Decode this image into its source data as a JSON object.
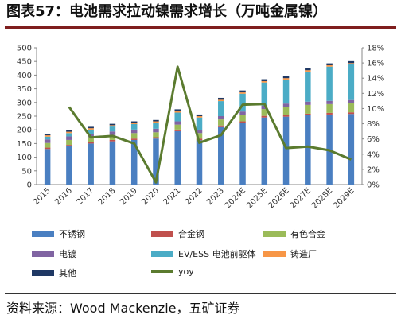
{
  "title": "图表57：电池需求拉动镍需求增长（万吨金属镍）",
  "source": "资料来源：Wood Mackenzie，五矿证券",
  "chart_data": {
    "type": "bar",
    "stacked": true,
    "categories": [
      "2015",
      "2016",
      "2017",
      "2018",
      "2019",
      "2020",
      "2021",
      "2022",
      "2023",
      "2024E",
      "2025E",
      "2026E",
      "2027E",
      "2028E",
      "2029E"
    ],
    "left_axis": {
      "min": 0,
      "max": 500,
      "step": 50,
      "ticks": [
        "0",
        "50",
        "100",
        "150",
        "200",
        "250",
        "300",
        "350",
        "400",
        "450",
        "500"
      ]
    },
    "right_axis": {
      "min": 0,
      "max": 18,
      "step": 2,
      "ticks": [
        "0%",
        "2%",
        "4%",
        "6%",
        "8%",
        "10%",
        "12%",
        "14%",
        "16%",
        "18%"
      ]
    },
    "grid": false,
    "legend_position": "bottom",
    "series": [
      {
        "name": "不锈钢",
        "color": "#4a7fc1",
        "values": [
          130,
          140,
          150,
          158,
          163,
          168,
          195,
          162,
          210,
          225,
          245,
          248,
          253,
          256,
          258
        ]
      },
      {
        "name": "合金钢",
        "color": "#c0504d",
        "values": [
          5,
          5,
          5,
          5,
          5,
          5,
          6,
          6,
          6,
          6,
          6,
          6,
          6,
          6,
          6
        ]
      },
      {
        "name": "有色合金",
        "color": "#9bbb59",
        "values": [
          17,
          18,
          18,
          18,
          20,
          18,
          18,
          20,
          22,
          24,
          25,
          30,
          32,
          32,
          33
        ]
      },
      {
        "name": "电镀",
        "color": "#8064a2",
        "values": [
          13,
          13,
          13,
          13,
          13,
          13,
          12,
          12,
          12,
          12,
          12,
          12,
          12,
          12,
          12
        ]
      },
      {
        "name": "EV/ESS 电池前驱体",
        "color": "#4bacc6",
        "values": [
          10,
          12,
          15,
          18,
          20,
          22,
          32,
          45,
          55,
          65,
          85,
          88,
          110,
          125,
          130
        ]
      },
      {
        "name": "铸造厂",
        "color": "#f79646",
        "values": [
          5,
          5,
          5,
          5,
          5,
          5,
          5,
          5,
          5,
          5,
          5,
          5,
          5,
          5,
          5
        ]
      },
      {
        "name": "其他",
        "color": "#1f3864",
        "values": [
          5,
          5,
          5,
          5,
          5,
          5,
          7,
          6,
          7,
          7,
          7,
          8,
          7,
          7,
          7
        ]
      }
    ],
    "line_series": {
      "name": "yoy",
      "color": "#5b7b2f",
      "axis": "right",
      "start_index": 1,
      "values": [
        10.2,
        6.2,
        6.4,
        5.4,
        0.3,
        15.5,
        5.5,
        6.5,
        10.5,
        10.6,
        4.8,
        5.0,
        4.5,
        3.3
      ]
    }
  }
}
